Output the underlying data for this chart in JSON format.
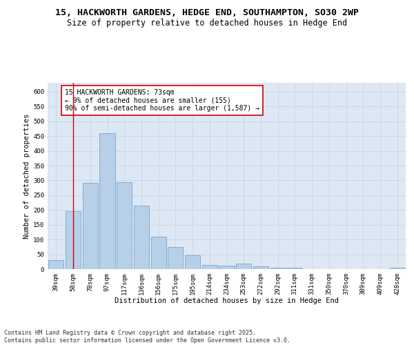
{
  "title_line1": "15, HACKWORTH GARDENS, HEDGE END, SOUTHAMPTON, SO30 2WP",
  "title_line2": "Size of property relative to detached houses in Hedge End",
  "xlabel": "Distribution of detached houses by size in Hedge End",
  "ylabel": "Number of detached properties",
  "bar_labels": [
    "39sqm",
    "58sqm",
    "78sqm",
    "97sqm",
    "117sqm",
    "136sqm",
    "156sqm",
    "175sqm",
    "195sqm",
    "214sqm",
    "234sqm",
    "253sqm",
    "272sqm",
    "292sqm",
    "311sqm",
    "331sqm",
    "350sqm",
    "370sqm",
    "389sqm",
    "409sqm",
    "428sqm"
  ],
  "bar_values": [
    30,
    197,
    292,
    460,
    295,
    215,
    110,
    75,
    47,
    13,
    12,
    19,
    10,
    5,
    5,
    0,
    0,
    0,
    0,
    0,
    5
  ],
  "bar_color": "#b8cfe8",
  "bar_edge_color": "#6699cc",
  "vline_x": 1,
  "vline_color": "#cc0000",
  "annotation_text": "15 HACKWORTH GARDENS: 73sqm\n← 9% of detached houses are smaller (155)\n90% of semi-detached houses are larger (1,587) →",
  "annotation_box_color": "#ffffff",
  "annotation_box_edge_color": "#cc0000",
  "ylim": [
    0,
    630
  ],
  "yticks": [
    0,
    50,
    100,
    150,
    200,
    250,
    300,
    350,
    400,
    450,
    500,
    550,
    600
  ],
  "grid_color": "#c8d4e8",
  "bg_color": "#dde8f4",
  "footer_text": "Contains HM Land Registry data © Crown copyright and database right 2025.\nContains public sector information licensed under the Open Government Licence v3.0.",
  "title_fontsize": 9.5,
  "subtitle_fontsize": 8.5,
  "axis_label_fontsize": 7.5,
  "tick_fontsize": 6.5,
  "annotation_fontsize": 7,
  "footer_fontsize": 6
}
